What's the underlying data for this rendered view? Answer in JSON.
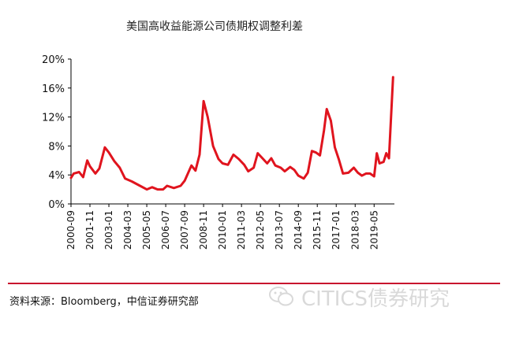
{
  "chart_data": {
    "type": "line",
    "title": "美国高收益能源公司债期权调整利差",
    "xlabel": "",
    "ylabel": "",
    "ylim": [
      0,
      20
    ],
    "y_ticks": [
      "0%",
      "4%",
      "8%",
      "12%",
      "16%",
      "20%"
    ],
    "x_tick_labels": [
      "2000-09",
      "2001-11",
      "2003-01",
      "2004-03",
      "2005-05",
      "2006-07",
      "2007-09",
      "2008-11",
      "2010-01",
      "2011-03",
      "2012-05",
      "2013-07",
      "2014-09",
      "2015-11",
      "2017-01",
      "2018-03",
      "2019-05"
    ],
    "grid": false,
    "legend": "none",
    "color": "#e0141e",
    "series": [
      {
        "values": [
          {
            "x": "2000-09",
            "y": 3.6
          },
          {
            "x": "2000-11",
            "y": 4.2
          },
          {
            "x": "2001-03",
            "y": 4.4
          },
          {
            "x": "2001-06",
            "y": 3.7
          },
          {
            "x": "2001-09",
            "y": 6.0
          },
          {
            "x": "2001-11",
            "y": 5.2
          },
          {
            "x": "2002-03",
            "y": 4.2
          },
          {
            "x": "2002-06",
            "y": 4.9
          },
          {
            "x": "2002-10",
            "y": 7.8
          },
          {
            "x": "2003-01",
            "y": 7.1
          },
          {
            "x": "2003-05",
            "y": 5.9
          },
          {
            "x": "2003-09",
            "y": 5.0
          },
          {
            "x": "2004-01",
            "y": 3.5
          },
          {
            "x": "2004-06",
            "y": 3.1
          },
          {
            "x": "2004-12",
            "y": 2.5
          },
          {
            "x": "2005-05",
            "y": 2.0
          },
          {
            "x": "2005-09",
            "y": 2.3
          },
          {
            "x": "2006-01",
            "y": 2.0
          },
          {
            "x": "2006-05",
            "y": 2.0
          },
          {
            "x": "2006-08",
            "y": 2.5
          },
          {
            "x": "2007-01",
            "y": 2.2
          },
          {
            "x": "2007-06",
            "y": 2.5
          },
          {
            "x": "2007-09",
            "y": 3.2
          },
          {
            "x": "2008-02",
            "y": 5.3
          },
          {
            "x": "2008-05",
            "y": 4.6
          },
          {
            "x": "2008-08",
            "y": 6.8
          },
          {
            "x": "2008-11",
            "y": 14.2
          },
          {
            "x": "2009-02",
            "y": 12.0
          },
          {
            "x": "2009-06",
            "y": 8.0
          },
          {
            "x": "2009-10",
            "y": 6.2
          },
          {
            "x": "2010-01",
            "y": 5.6
          },
          {
            "x": "2010-05",
            "y": 5.4
          },
          {
            "x": "2010-09",
            "y": 6.8
          },
          {
            "x": "2011-01",
            "y": 6.2
          },
          {
            "x": "2011-05",
            "y": 5.4
          },
          {
            "x": "2011-08",
            "y": 4.5
          },
          {
            "x": "2011-12",
            "y": 5.0
          },
          {
            "x": "2012-03",
            "y": 7.0
          },
          {
            "x": "2012-06",
            "y": 6.4
          },
          {
            "x": "2012-10",
            "y": 5.6
          },
          {
            "x": "2013-01",
            "y": 6.3
          },
          {
            "x": "2013-04",
            "y": 5.3
          },
          {
            "x": "2013-08",
            "y": 5.0
          },
          {
            "x": "2013-11",
            "y": 4.5
          },
          {
            "x": "2014-03",
            "y": 5.1
          },
          {
            "x": "2014-06",
            "y": 4.7
          },
          {
            "x": "2014-09",
            "y": 3.9
          },
          {
            "x": "2015-01",
            "y": 3.5
          },
          {
            "x": "2015-04",
            "y": 4.3
          },
          {
            "x": "2015-07",
            "y": 7.3
          },
          {
            "x": "2015-10",
            "y": 7.1
          },
          {
            "x": "2016-01",
            "y": 6.7
          },
          {
            "x": "2016-04",
            "y": 10.2
          },
          {
            "x": "2016-06",
            "y": 13.1
          },
          {
            "x": "2016-09",
            "y": 11.5
          },
          {
            "x": "2016-12",
            "y": 7.8
          },
          {
            "x": "2017-03",
            "y": 6.1
          },
          {
            "x": "2017-06",
            "y": 4.2
          },
          {
            "x": "2017-10",
            "y": 4.3
          },
          {
            "x": "2018-02",
            "y": 5.0
          },
          {
            "x": "2018-05",
            "y": 4.3
          },
          {
            "x": "2018-08",
            "y": 3.9
          },
          {
            "x": "2018-11",
            "y": 4.2
          },
          {
            "x": "2019-02",
            "y": 4.2
          },
          {
            "x": "2019-05",
            "y": 3.8
          },
          {
            "x": "2019-07",
            "y": 7.0
          },
          {
            "x": "2019-09",
            "y": 5.6
          },
          {
            "x": "2019-12",
            "y": 5.8
          },
          {
            "x": "2020-02",
            "y": 7.0
          },
          {
            "x": "2020-04",
            "y": 6.3
          },
          {
            "x": "2020-07",
            "y": 17.5
          }
        ]
      }
    ]
  },
  "footer": {
    "source": "资料来源：Bloomberg，中信证券研究部",
    "watermark": "CITICS债券研究",
    "rule_color": "#c8102e",
    "watermark_icon": "wechat-icon"
  }
}
